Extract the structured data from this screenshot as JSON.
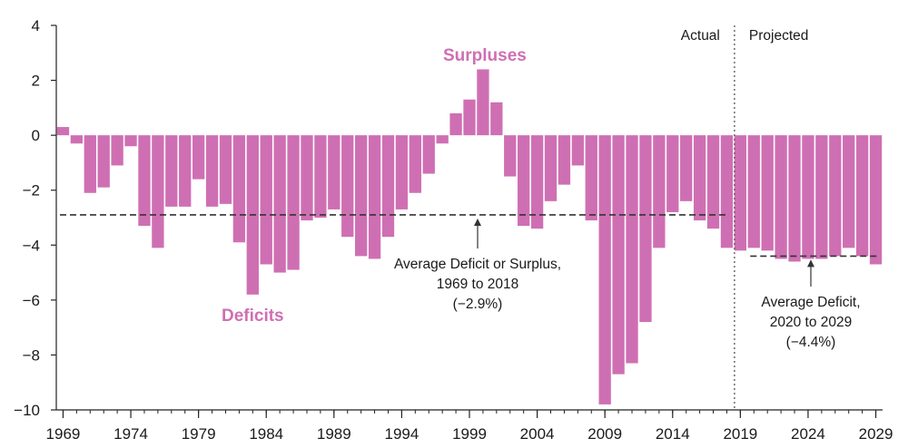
{
  "chart_data": {
    "type": "bar",
    "x": [
      1969,
      1970,
      1971,
      1972,
      1973,
      1974,
      1975,
      1976,
      1977,
      1978,
      1979,
      1980,
      1981,
      1982,
      1983,
      1984,
      1985,
      1986,
      1987,
      1988,
      1989,
      1990,
      1991,
      1992,
      1993,
      1994,
      1995,
      1996,
      1997,
      1998,
      1999,
      2000,
      2001,
      2002,
      2003,
      2004,
      2005,
      2006,
      2007,
      2008,
      2009,
      2010,
      2011,
      2012,
      2013,
      2014,
      2015,
      2016,
      2017,
      2018,
      2019,
      2020,
      2021,
      2022,
      2023,
      2024,
      2025,
      2026,
      2027,
      2028,
      2029
    ],
    "values": [
      0.3,
      -0.3,
      -2.1,
      -1.9,
      -1.1,
      -0.4,
      -3.3,
      -4.1,
      -2.6,
      -2.6,
      -1.6,
      -2.6,
      -2.5,
      -3.9,
      -5.8,
      -4.7,
      -5.0,
      -4.9,
      -3.1,
      -3.0,
      -2.7,
      -3.7,
      -4.4,
      -4.5,
      -3.7,
      -2.7,
      -2.1,
      -1.4,
      -0.3,
      0.8,
      1.3,
      2.4,
      1.2,
      -1.5,
      -3.3,
      -3.4,
      -2.4,
      -1.8,
      -1.1,
      -3.1,
      -9.8,
      -8.7,
      -8.3,
      -6.8,
      -4.1,
      -2.8,
      -2.4,
      -3.1,
      -3.4,
      -4.1,
      -4.2,
      -4.1,
      -4.2,
      -4.5,
      -4.6,
      -4.5,
      -4.5,
      -4.4,
      -4.1,
      -4.4,
      -4.7
    ],
    "x_tick_labels": [
      "1969",
      "1974",
      "1979",
      "1984",
      "1989",
      "1994",
      "1999",
      "2004",
      "2009",
      "2014",
      "2019",
      "2024",
      "2029"
    ],
    "y_tick_labels": [
      "4",
      "2",
      "0",
      "−2",
      "−4",
      "−6",
      "−8",
      "−10"
    ],
    "ylim": [
      -10,
      4
    ],
    "xlabel": "",
    "ylabel": "",
    "bar_color": "#cf6fb3",
    "actual_projected_divider_after": 2018,
    "region_labels": {
      "actual": "Actual",
      "projected": "Projected"
    },
    "highlight_labels": {
      "surpluses": "Surpluses",
      "deficits": "Deficits"
    },
    "reference_lines": [
      {
        "from": 1969,
        "to": 2018,
        "value": -2.9,
        "label_lines": [
          "Average Deficit or Surplus,",
          "1969 to 2018",
          "(−2.9%)"
        ]
      },
      {
        "from": 2020,
        "to": 2029,
        "value": -4.4,
        "label_lines": [
          "Average Deficit,",
          "2020 to 2029",
          "(−4.4%)"
        ]
      }
    ]
  }
}
